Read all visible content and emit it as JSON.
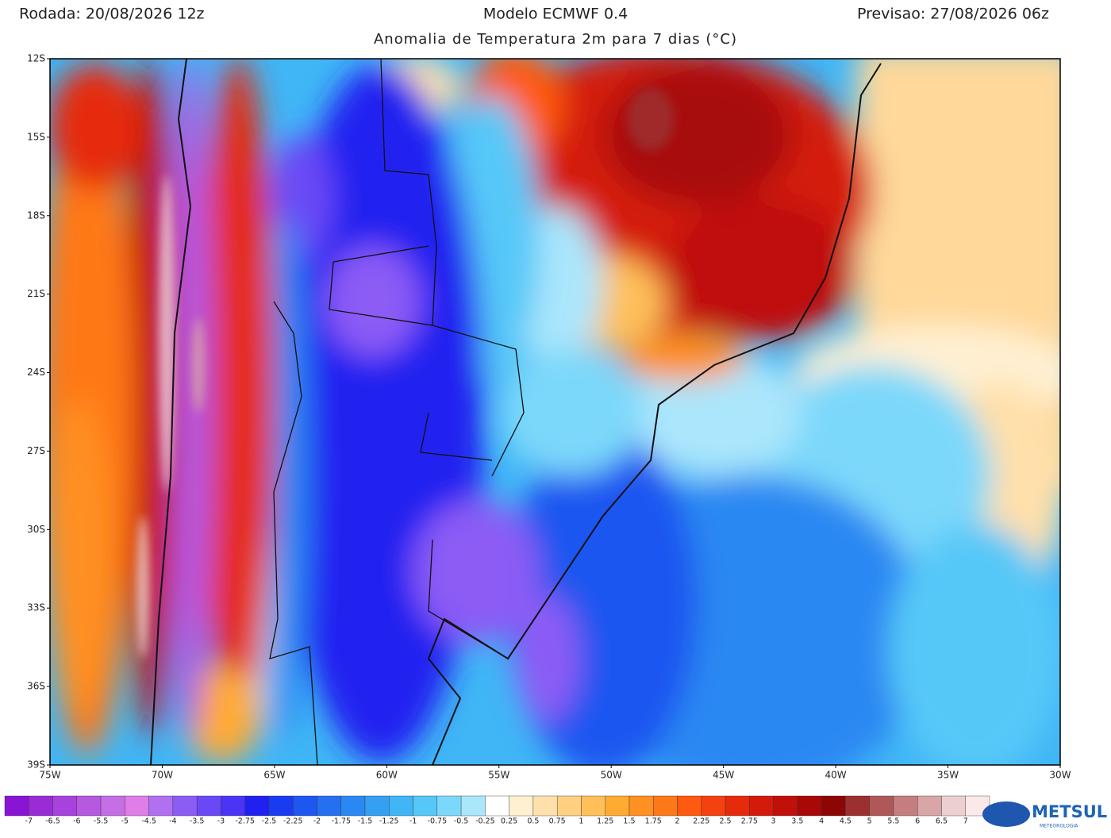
{
  "header": {
    "run": "Rodada: 20/08/2026 12z",
    "model": "Modelo ECMWF 0.4",
    "forecast": "Previsao: 27/08/2026 06z",
    "subtitle": "Anomalia de Temperatura 2m para 7 dias (°C)"
  },
  "map": {
    "lonlim": [
      -75,
      -30
    ],
    "latlim": [
      -39,
      -12
    ],
    "lat_ticks": [
      {
        "value": -12,
        "label": "12S"
      },
      {
        "value": -15,
        "label": "15S"
      },
      {
        "value": -18,
        "label": "18S"
      },
      {
        "value": -21,
        "label": "21S"
      },
      {
        "value": -24,
        "label": "24S"
      },
      {
        "value": -27,
        "label": "27S"
      },
      {
        "value": -30,
        "label": "30S"
      },
      {
        "value": -33,
        "label": "33S"
      },
      {
        "value": -36,
        "label": "36S"
      },
      {
        "value": -39,
        "label": "39S"
      }
    ],
    "lon_ticks": [
      {
        "value": -75,
        "label": "75W"
      },
      {
        "value": -70,
        "label": "70W"
      },
      {
        "value": -65,
        "label": "65W"
      },
      {
        "value": -60,
        "label": "60W"
      },
      {
        "value": -55,
        "label": "55W"
      },
      {
        "value": -50,
        "label": "50W"
      },
      {
        "value": -45,
        "label": "45W"
      },
      {
        "value": -40,
        "label": "40W"
      },
      {
        "value": -35,
        "label": "35W"
      },
      {
        "value": -30,
        "label": "30W"
      }
    ]
  },
  "colorbar": {
    "levels": [
      -7,
      -6.5,
      -6,
      -5.5,
      -5,
      -4.5,
      -4,
      -3.5,
      -3,
      -2.75,
      -2.5,
      -2.25,
      -2,
      -1.75,
      -1.5,
      -1.25,
      -1,
      -0.75,
      -0.5,
      -0.25,
      0.25,
      0.5,
      0.75,
      1,
      1.25,
      1.5,
      1.75,
      2,
      2.25,
      2.5,
      2.75,
      3,
      3.5,
      4,
      4.5,
      5,
      5.5,
      6,
      6.5,
      7
    ],
    "colors": [
      "#8a14d4",
      "#9a2cd8",
      "#a842dc",
      "#b658e0",
      "#c66ee4",
      "#e07ee8",
      "#b070f0",
      "#8c5cf5",
      "#6a48f5",
      "#4a34f5",
      "#2020f0",
      "#1a3cf0",
      "#1e56f0",
      "#2470f0",
      "#2a88f2",
      "#34a0f4",
      "#40b6f6",
      "#56c8f8",
      "#7cd8fa",
      "#aae6fc",
      "#ffffff",
      "#fff0d2",
      "#ffe0aa",
      "#ffd082",
      "#ffc05a",
      "#ffaa32",
      "#ff9022",
      "#ff7818",
      "#ff5a10",
      "#f54010",
      "#e62a0c",
      "#d41a0a",
      "#c0100a",
      "#a80808",
      "#8c0606",
      "#9c3030",
      "#b05858",
      "#c47e7e",
      "#d8a6a6",
      "#ecd0d0",
      "#fbe8e8"
    ]
  },
  "logo": {
    "name": "METSUL",
    "tagline": "METEOROLOGIA"
  }
}
